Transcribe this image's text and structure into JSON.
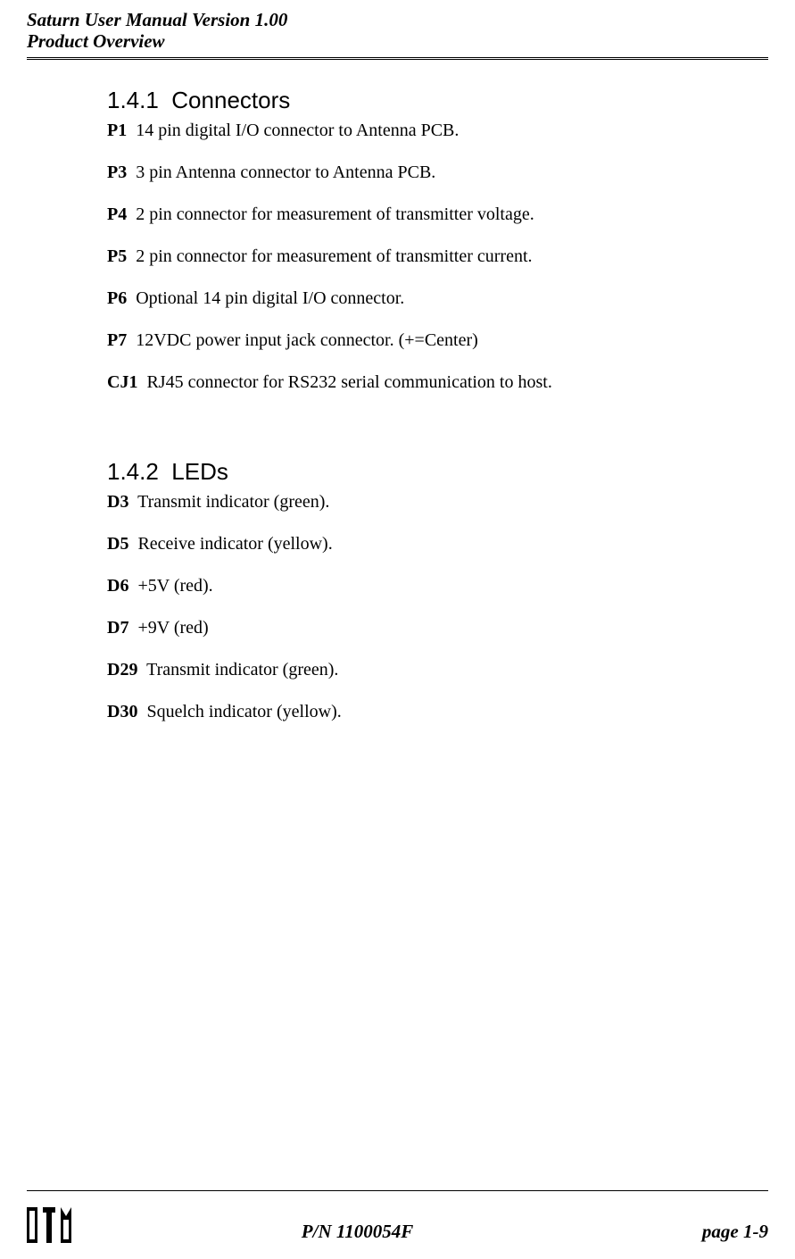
{
  "header": {
    "line1": "Saturn User Manual Version 1.00",
    "line2": "Product Overview"
  },
  "sections": {
    "connectors": {
      "number": "1.4.1",
      "title": "Connectors",
      "items": [
        {
          "ref": "P1",
          "desc": "14 pin digital I/O connector to Antenna PCB."
        },
        {
          "ref": "P3",
          "desc": "3 pin Antenna connector to Antenna PCB."
        },
        {
          "ref": "P4",
          "desc": "2 pin connector for measurement of transmitter voltage."
        },
        {
          "ref": "P5",
          "desc": "2 pin connector for measurement of transmitter current."
        },
        {
          "ref": "P6",
          "desc": "Optional 14 pin digital I/O connector."
        },
        {
          "ref": "P7",
          "desc": "12VDC power input jack connector. (+=Center)"
        },
        {
          "ref": "CJ1",
          "desc": "RJ45 connector for RS232 serial communication to host."
        }
      ]
    },
    "leds": {
      "number": "1.4.2",
      "title": "LEDs",
      "items": [
        {
          "ref": "D3",
          "desc": "Transmit indicator (green)."
        },
        {
          "ref": "D5",
          "desc": "Receive indicator (yellow)."
        },
        {
          "ref": "D6",
          "desc": "+5V (red)."
        },
        {
          "ref": "D7",
          "desc": "+9V (red)"
        },
        {
          "ref": "D29",
          "desc": "Transmit indicator (green)."
        },
        {
          "ref": "D30",
          "desc": "Squelch indicator (yellow)."
        }
      ]
    }
  },
  "footer": {
    "part_number": "P/N 1100054F",
    "page_label": "page 1-9"
  }
}
